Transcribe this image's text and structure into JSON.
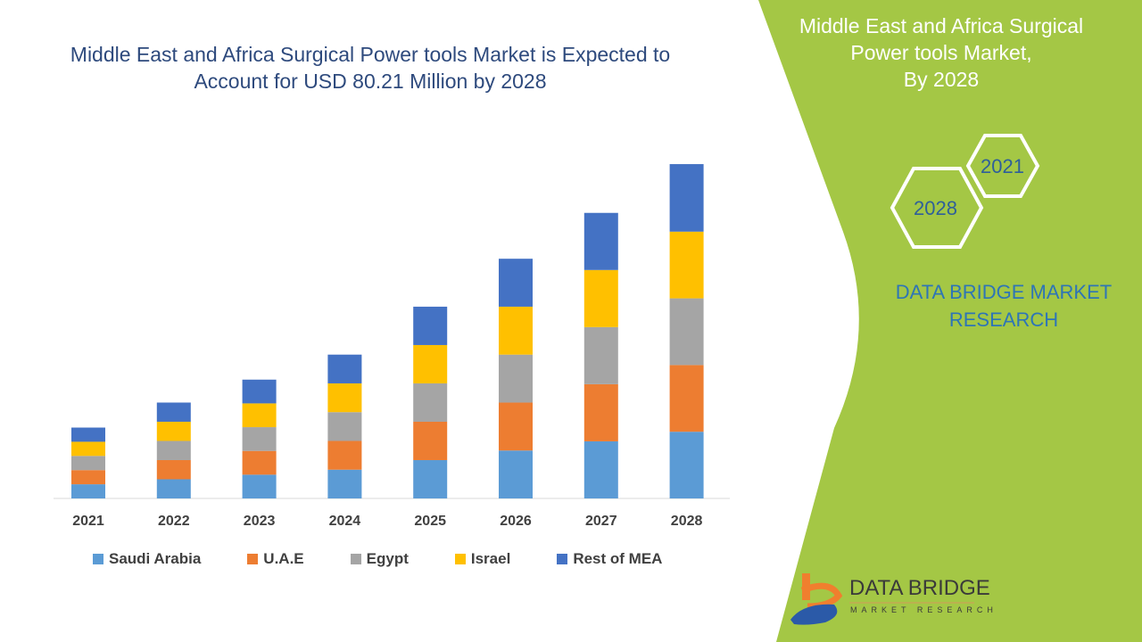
{
  "title": "Middle East and Africa Surgical Power tools Market is Expected to Account for USD 80.21 Million by 2028",
  "side_panel": {
    "title_lines": [
      "Middle East and Africa Surgical",
      "Power tools Market,",
      "By 2028"
    ],
    "hex_years": [
      "2021",
      "2028"
    ],
    "brand_lines": [
      "DATA BRIDGE MARKET",
      "RESEARCH"
    ],
    "logo": {
      "name": "DATA BRIDGE",
      "tagline": "MARKET RESEARCH"
    },
    "green": "#a4c745"
  },
  "chart_data": {
    "type": "bar",
    "stacked": true,
    "categories": [
      "2021",
      "2022",
      "2023",
      "2024",
      "2025",
      "2026",
      "2027",
      "2028"
    ],
    "series": [
      {
        "name": "Saudi Arabia",
        "color": "#5b9bd5",
        "values": [
          3.4,
          4.6,
          5.7,
          6.9,
          9.2,
          11.5,
          13.7,
          16.0
        ]
      },
      {
        "name": "U.A.E",
        "color": "#ed7d31",
        "values": [
          3.4,
          4.6,
          5.7,
          6.9,
          9.2,
          11.5,
          13.7,
          16.0
        ]
      },
      {
        "name": "Egypt",
        "color": "#a5a5a5",
        "values": [
          3.4,
          4.6,
          5.7,
          6.9,
          9.2,
          11.5,
          13.7,
          16.0
        ]
      },
      {
        "name": "Israel",
        "color": "#ffc000",
        "values": [
          3.4,
          4.6,
          5.7,
          6.9,
          9.2,
          11.5,
          13.7,
          16.0
        ]
      },
      {
        "name": "Rest of MEA",
        "color": "#4472c4",
        "values": [
          3.4,
          4.6,
          5.7,
          6.9,
          9.2,
          11.5,
          13.7,
          16.2
        ]
      }
    ],
    "ylim": [
      0,
      80.21
    ],
    "grid": false,
    "y_axis_shown": false,
    "legend_position": "bottom"
  }
}
